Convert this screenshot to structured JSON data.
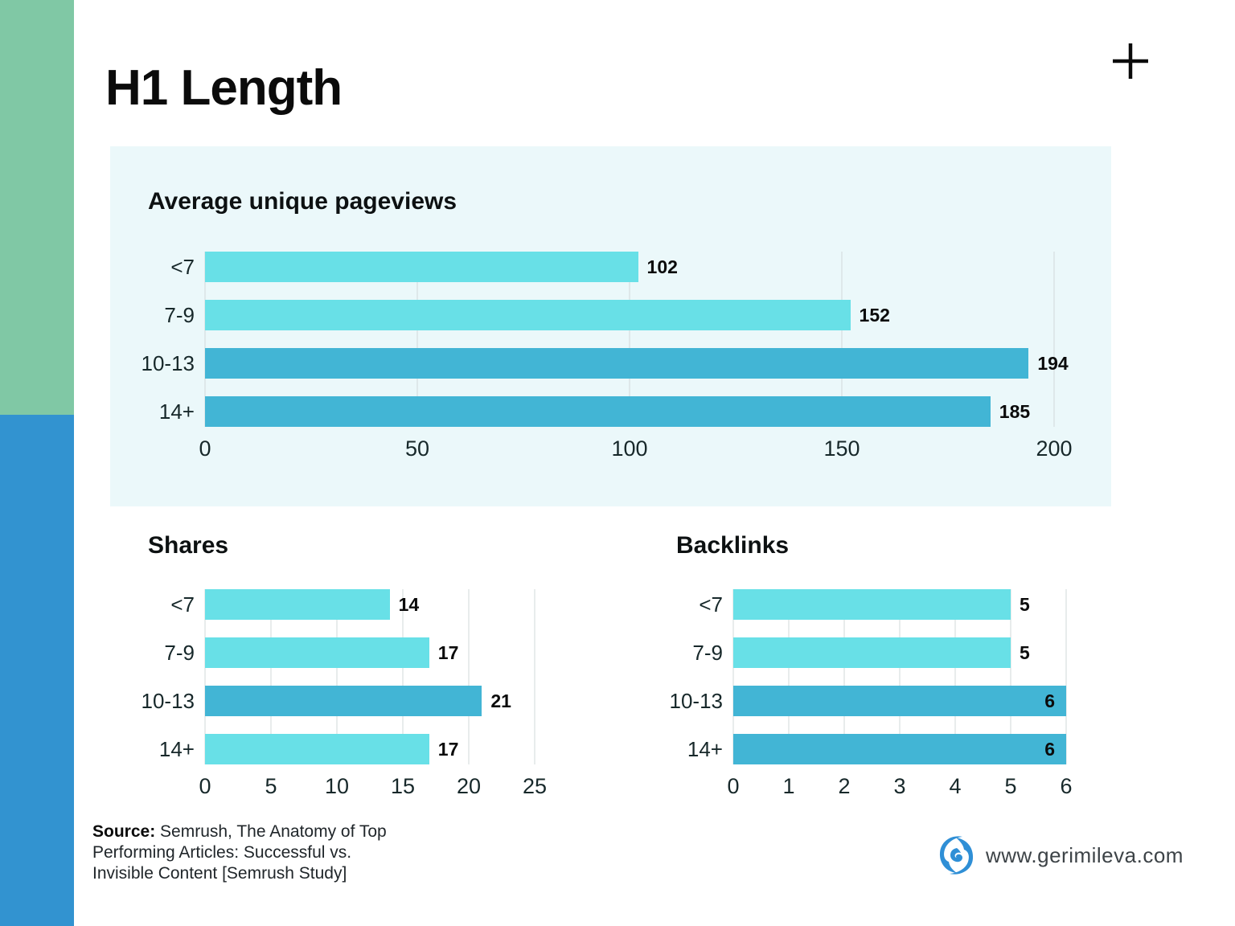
{
  "page": {
    "title": "H1 Length",
    "website": "www.gerimileva.com",
    "source_label": "Source:",
    "source_text": " Semrush, The Anatomy of Top Performing Articles: Successful vs. Invisible Content [Semrush Study]"
  },
  "colors": {
    "bar_light": "#68e0e7",
    "bar_dark": "#42b5d5",
    "panel_bg": "#ebf8fa",
    "sidebar_green": "#80c8a5",
    "sidebar_blue": "#3293d0",
    "gridline": "#d2d8d9",
    "logo_blue": "#2f8fd6",
    "plus_black": "#0b0b0b"
  },
  "chart_data": [
    {
      "type": "bar",
      "orientation": "horizontal",
      "title": "Average unique pageviews",
      "categories": [
        "<7",
        "7-9",
        "10-13",
        "14+"
      ],
      "values": [
        102,
        152,
        194,
        185
      ],
      "bar_shades": [
        "light",
        "light",
        "dark",
        "dark"
      ],
      "value_label_inside": [
        false,
        false,
        false,
        false
      ],
      "xticks": [
        0,
        50,
        100,
        150,
        200
      ],
      "xlim": [
        0,
        200
      ],
      "grid": true,
      "legend": "none"
    },
    {
      "type": "bar",
      "orientation": "horizontal",
      "title": "Shares",
      "categories": [
        "<7",
        "7-9",
        "10-13",
        "14+"
      ],
      "values": [
        14,
        17,
        21,
        17
      ],
      "bar_shades": [
        "light",
        "light",
        "dark",
        "light"
      ],
      "value_label_inside": [
        false,
        false,
        false,
        false
      ],
      "xticks": [
        0,
        5,
        10,
        15,
        20,
        25
      ],
      "xlim": [
        0,
        25
      ],
      "grid": true,
      "legend": "none"
    },
    {
      "type": "bar",
      "orientation": "horizontal",
      "title": "Backlinks",
      "categories": [
        "<7",
        "7-9",
        "10-13",
        "14+"
      ],
      "values": [
        5,
        5,
        6,
        6
      ],
      "bar_shades": [
        "light",
        "light",
        "dark",
        "dark"
      ],
      "value_label_inside": [
        false,
        false,
        true,
        true
      ],
      "xticks": [
        0,
        1,
        2,
        3,
        4,
        5,
        6
      ],
      "xlim": [
        0,
        6
      ],
      "grid": true,
      "legend": "none"
    }
  ]
}
